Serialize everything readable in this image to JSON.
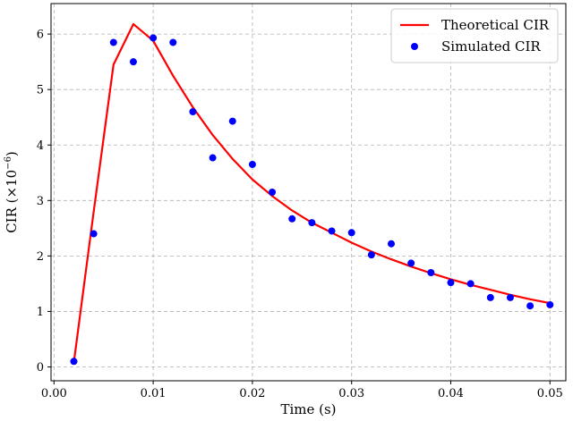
{
  "chart_data": {
    "type": "line",
    "xlabel": "Time (s)",
    "ylabel": "CIR (×10",
    "ylabel_exponent": "−6",
    "ylabel_suffix": ")",
    "xlim": [
      -0.0003,
      0.0516
    ],
    "ylim": [
      -0.25,
      6.55
    ],
    "x_ticks": [
      0.0,
      0.01,
      0.02,
      0.03,
      0.04,
      0.05
    ],
    "x_tick_labels": [
      "0.00",
      "0.01",
      "0.02",
      "0.03",
      "0.04",
      "0.05"
    ],
    "y_ticks": [
      0,
      1,
      2,
      3,
      4,
      5,
      6
    ],
    "y_tick_labels": [
      "0",
      "1",
      "2",
      "3",
      "4",
      "5",
      "6"
    ],
    "grid": true,
    "legend_position": "top-right",
    "series": [
      {
        "name": "Theoretical CIR",
        "kind": "line",
        "color": "#ff0000",
        "x": [
          0.002,
          0.004,
          0.006,
          0.008,
          0.01,
          0.012,
          0.014,
          0.016,
          0.018,
          0.02,
          0.022,
          0.024,
          0.026,
          0.028,
          0.03,
          0.032,
          0.034,
          0.036,
          0.038,
          0.04,
          0.042,
          0.044,
          0.046,
          0.048,
          0.05
        ],
        "y": [
          0.08,
          2.8,
          5.45,
          6.18,
          5.88,
          5.25,
          4.68,
          4.18,
          3.75,
          3.38,
          3.08,
          2.82,
          2.6,
          2.42,
          2.24,
          2.08,
          1.94,
          1.81,
          1.69,
          1.58,
          1.48,
          1.39,
          1.3,
          1.22,
          1.15
        ]
      },
      {
        "name": "Simulated CIR",
        "kind": "scatter",
        "color": "#0000ff",
        "x": [
          0.002,
          0.004,
          0.006,
          0.008,
          0.01,
          0.012,
          0.014,
          0.016,
          0.018,
          0.02,
          0.022,
          0.024,
          0.026,
          0.028,
          0.03,
          0.032,
          0.034,
          0.036,
          0.038,
          0.04,
          0.042,
          0.044,
          0.046,
          0.048,
          0.05
        ],
        "y": [
          0.1,
          2.4,
          5.85,
          5.5,
          5.93,
          5.85,
          4.6,
          3.77,
          4.43,
          3.65,
          3.15,
          2.67,
          2.6,
          2.45,
          2.42,
          2.02,
          2.22,
          1.87,
          1.7,
          1.52,
          1.5,
          1.25,
          1.25,
          1.1,
          1.12
        ]
      }
    ]
  }
}
